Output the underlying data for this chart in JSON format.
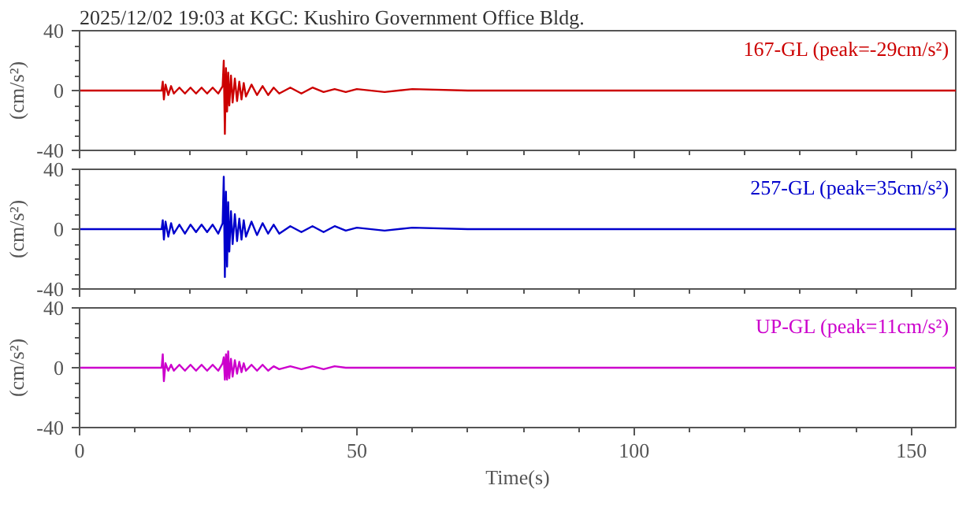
{
  "chart_data": [
    {
      "type": "line",
      "title": "2025/12/02 19:03 at KGC: Kushiro Government Office Bldg.",
      "ylabel": "(cm/s²)",
      "tick_labels": "y",
      "x": [
        0,
        14.8,
        15.0,
        15.2,
        15.5,
        16,
        16.5,
        17,
        18,
        19,
        20,
        21,
        22,
        23,
        24,
        25,
        25.8,
        26.0,
        26.2,
        26.4,
        26.6,
        26.8,
        27.0,
        27.3,
        27.6,
        28,
        28.4,
        28.8,
        29.2,
        29.6,
        30,
        31,
        32,
        33,
        34,
        35,
        36,
        38,
        40,
        42,
        44,
        46,
        48,
        50,
        55,
        60,
        70,
        80,
        100,
        158
      ],
      "xlim": [
        0,
        158
      ],
      "ylim": [
        -40,
        40
      ],
      "xticks": [
        0,
        {
          "value": 10,
          "label": null
        },
        {
          "value": 20,
          "label": null
        },
        {
          "value": 30,
          "label": null
        },
        {
          "value": 40,
          "label": null
        },
        50,
        {
          "value": 60,
          "label": null
        },
        {
          "value": 70,
          "label": null
        },
        {
          "value": 80,
          "label": null
        },
        {
          "value": 90,
          "label": null
        },
        100,
        {
          "value": 110,
          "label": null
        },
        {
          "value": 120,
          "label": null
        },
        {
          "value": 130,
          "label": null
        },
        {
          "value": 140,
          "label": null
        },
        150
      ],
      "yticks": [
        -40,
        {
          "value": -30,
          "label": null
        },
        {
          "value": -20,
          "label": null
        },
        {
          "value": -10,
          "label": null
        },
        0,
        {
          "value": 10,
          "label": null
        },
        {
          "value": 20,
          "label": null
        },
        {
          "value": 30,
          "label": null
        },
        40
      ],
      "series": [
        {
          "name": "167-GL (peak=-29cm/s²)",
          "color": "#cc0000",
          "values": [
            0,
            0,
            6,
            -6,
            4,
            -3,
            3,
            -2,
            2,
            -2,
            2,
            -2,
            2,
            -2,
            2,
            -2,
            3,
            20,
            -29,
            15,
            -14,
            12,
            -10,
            10,
            -8,
            8,
            -7,
            6,
            -6,
            5,
            -4,
            4,
            -3,
            3,
            -3,
            2,
            -2,
            2,
            -2,
            2,
            -1,
            1,
            -1,
            1,
            -1,
            1,
            0,
            0,
            0,
            0
          ]
        }
      ]
    },
    {
      "type": "line",
      "ylabel": "(cm/s²)",
      "tick_labels": "y",
      "x": [
        0,
        14.8,
        15.0,
        15.2,
        15.5,
        16,
        16.5,
        17,
        18,
        19,
        20,
        21,
        22,
        23,
        24,
        25,
        25.8,
        26.0,
        26.2,
        26.4,
        26.6,
        26.8,
        27.0,
        27.3,
        27.6,
        28,
        28.4,
        28.8,
        29.2,
        29.6,
        30,
        31,
        32,
        33,
        34,
        35,
        36,
        38,
        40,
        42,
        44,
        46,
        48,
        50,
        55,
        60,
        70,
        80,
        100,
        158
      ],
      "xlim": [
        0,
        158
      ],
      "ylim": [
        -40,
        40
      ],
      "xticks": [
        0,
        {
          "value": 10,
          "label": null
        },
        {
          "value": 20,
          "label": null
        },
        {
          "value": 30,
          "label": null
        },
        {
          "value": 40,
          "label": null
        },
        50,
        {
          "value": 60,
          "label": null
        },
        {
          "value": 70,
          "label": null
        },
        {
          "value": 80,
          "label": null
        },
        {
          "value": 90,
          "label": null
        },
        100,
        {
          "value": 110,
          "label": null
        },
        {
          "value": 120,
          "label": null
        },
        {
          "value": 130,
          "label": null
        },
        {
          "value": 140,
          "label": null
        },
        150
      ],
      "yticks": [
        -40,
        {
          "value": -30,
          "label": null
        },
        {
          "value": -20,
          "label": null
        },
        {
          "value": -10,
          "label": null
        },
        0,
        {
          "value": 10,
          "label": null
        },
        {
          "value": 20,
          "label": null
        },
        {
          "value": 30,
          "label": null
        },
        40
      ],
      "series": [
        {
          "name": "257-GL (peak=35cm/s²)",
          "color": "#0000cc",
          "values": [
            0,
            0,
            6,
            -7,
            5,
            -5,
            4,
            -3,
            3,
            -3,
            3,
            -2,
            3,
            -2,
            3,
            -3,
            4,
            35,
            -32,
            25,
            -25,
            18,
            -15,
            12,
            -10,
            10,
            -8,
            7,
            -7,
            6,
            -5,
            5,
            -4,
            4,
            -3,
            3,
            -3,
            2,
            -2,
            2,
            -2,
            2,
            -1,
            1,
            -1,
            1,
            0,
            0,
            0,
            0
          ]
        }
      ]
    },
    {
      "type": "line",
      "ylabel": "(cm/s²)",
      "xlabel": "Time(s)",
      "x": [
        0,
        14.8,
        15.0,
        15.2,
        15.5,
        16,
        16.5,
        17,
        18,
        19,
        20,
        21,
        22,
        23,
        24,
        25,
        25.8,
        26.0,
        26.2,
        26.4,
        26.6,
        26.8,
        27.0,
        27.3,
        27.6,
        28,
        28.4,
        28.8,
        29.2,
        29.6,
        30,
        31,
        32,
        33,
        34,
        35,
        36,
        38,
        40,
        42,
        44,
        46,
        48,
        50,
        55,
        60,
        70,
        80,
        100,
        158
      ],
      "xlim": [
        0,
        158
      ],
      "ylim": [
        -40,
        40
      ],
      "xticks": [
        0,
        {
          "value": 10,
          "label": null
        },
        {
          "value": 20,
          "label": null
        },
        {
          "value": 30,
          "label": null
        },
        {
          "value": 40,
          "label": null
        },
        50,
        {
          "value": 60,
          "label": null
        },
        {
          "value": 70,
          "label": null
        },
        {
          "value": 80,
          "label": null
        },
        {
          "value": 90,
          "label": null
        },
        100,
        {
          "value": 110,
          "label": null
        },
        {
          "value": 120,
          "label": null
        },
        {
          "value": 130,
          "label": null
        },
        {
          "value": 140,
          "label": null
        },
        150
      ],
      "yticks": [
        -40,
        {
          "value": -30,
          "label": null
        },
        {
          "value": -20,
          "label": null
        },
        {
          "value": -10,
          "label": null
        },
        0,
        {
          "value": 10,
          "label": null
        },
        {
          "value": 20,
          "label": null
        },
        {
          "value": 30,
          "label": null
        },
        40
      ],
      "series": [
        {
          "name": "UP-GL (peak=11cm/s²)",
          "color": "#cc00cc",
          "values": [
            0,
            0,
            9,
            -9,
            3,
            -2,
            2,
            -2,
            2,
            -2,
            2,
            -2,
            2,
            -2,
            2,
            -2,
            3,
            7,
            -8,
            9,
            -8,
            11,
            -7,
            6,
            -6,
            5,
            -4,
            4,
            -3,
            3,
            -2,
            2,
            -2,
            2,
            -2,
            1,
            -1,
            1,
            -1,
            1,
            -1,
            1,
            0,
            0,
            0,
            0,
            0,
            0,
            0,
            0
          ]
        }
      ]
    }
  ]
}
